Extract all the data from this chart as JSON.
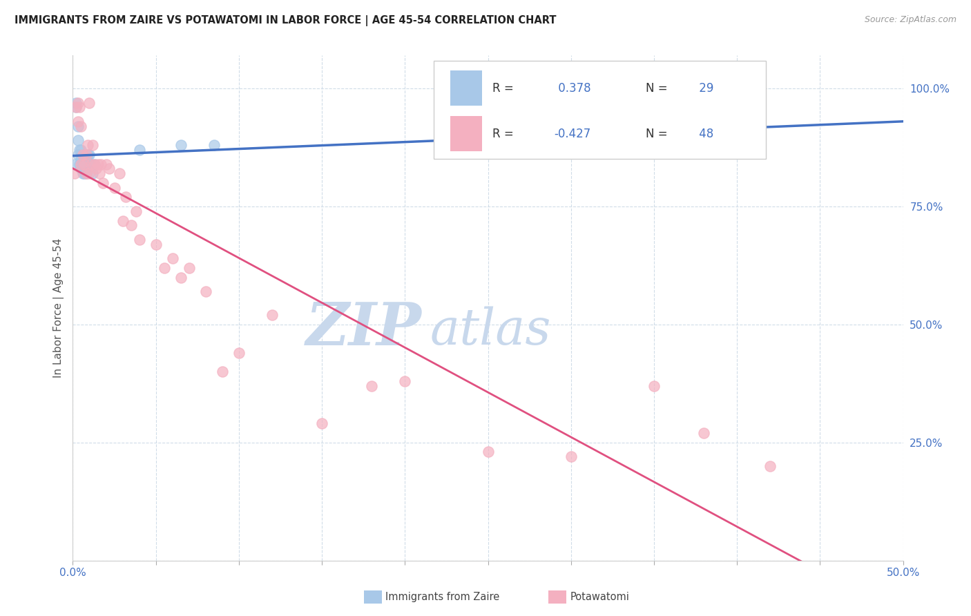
{
  "title": "IMMIGRANTS FROM ZAIRE VS POTAWATOMI IN LABOR FORCE | AGE 45-54 CORRELATION CHART",
  "source": "Source: ZipAtlas.com",
  "ylabel": "In Labor Force | Age 45-54",
  "xlim": [
    0.0,
    0.5
  ],
  "ylim": [
    0.0,
    1.07
  ],
  "xticks": [
    0.0,
    0.05,
    0.1,
    0.15,
    0.2,
    0.25,
    0.3,
    0.35,
    0.4,
    0.45,
    0.5
  ],
  "ytick_labels_right": [
    "100.0%",
    "75.0%",
    "50.0%",
    "25.0%"
  ],
  "yticks_right": [
    1.0,
    0.75,
    0.5,
    0.25
  ],
  "color_zaire": "#a8c8e8",
  "color_potawatomi": "#f4b0c0",
  "trendline_color_zaire": "#4472c4",
  "trendline_color_potawatomi": "#e05080",
  "watermark_zip": "ZIP",
  "watermark_atlas": "atlas",
  "watermark_color": "#c8d8ec",
  "zaire_x": [
    0.001,
    0.002,
    0.002,
    0.003,
    0.003,
    0.003,
    0.004,
    0.004,
    0.005,
    0.005,
    0.005,
    0.006,
    0.006,
    0.006,
    0.007,
    0.007,
    0.007,
    0.008,
    0.008,
    0.009,
    0.009,
    0.01,
    0.01,
    0.011,
    0.012,
    0.013,
    0.04,
    0.065,
    0.085
  ],
  "zaire_y": [
    0.84,
    0.97,
    0.96,
    0.92,
    0.89,
    0.86,
    0.87,
    0.84,
    0.87,
    0.85,
    0.83,
    0.86,
    0.84,
    0.82,
    0.85,
    0.84,
    0.82,
    0.84,
    0.82,
    0.86,
    0.84,
    0.86,
    0.84,
    0.84,
    0.82,
    0.84,
    0.87,
    0.88,
    0.88
  ],
  "potawatomi_x": [
    0.001,
    0.002,
    0.003,
    0.003,
    0.004,
    0.005,
    0.005,
    0.006,
    0.007,
    0.008,
    0.008,
    0.009,
    0.01,
    0.01,
    0.011,
    0.012,
    0.013,
    0.014,
    0.015,
    0.016,
    0.017,
    0.018,
    0.02,
    0.022,
    0.025,
    0.028,
    0.03,
    0.032,
    0.035,
    0.038,
    0.04,
    0.05,
    0.055,
    0.06,
    0.065,
    0.07,
    0.08,
    0.09,
    0.1,
    0.12,
    0.15,
    0.18,
    0.2,
    0.25,
    0.3,
    0.35,
    0.38,
    0.42
  ],
  "potawatomi_y": [
    0.82,
    0.96,
    0.97,
    0.93,
    0.96,
    0.92,
    0.84,
    0.86,
    0.84,
    0.86,
    0.82,
    0.88,
    0.97,
    0.82,
    0.84,
    0.88,
    0.84,
    0.83,
    0.84,
    0.82,
    0.84,
    0.8,
    0.84,
    0.83,
    0.79,
    0.82,
    0.72,
    0.77,
    0.71,
    0.74,
    0.68,
    0.67,
    0.62,
    0.64,
    0.6,
    0.62,
    0.57,
    0.4,
    0.44,
    0.52,
    0.29,
    0.37,
    0.38,
    0.23,
    0.22,
    0.37,
    0.27,
    0.2
  ]
}
